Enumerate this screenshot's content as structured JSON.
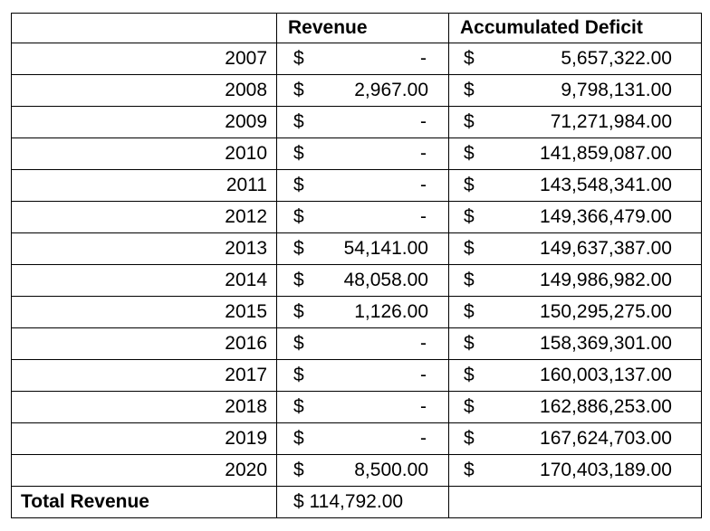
{
  "table": {
    "headers": {
      "year": "",
      "revenue": "Revenue",
      "deficit": "Accumulated Deficit"
    },
    "currency_symbol": "$",
    "rows": [
      {
        "year": "2007",
        "revenue": "-",
        "deficit": "5,657,322.00"
      },
      {
        "year": "2008",
        "revenue": "2,967.00",
        "deficit": "9,798,131.00"
      },
      {
        "year": "2009",
        "revenue": "-",
        "deficit": "71,271,984.00"
      },
      {
        "year": "2010",
        "revenue": "-",
        "deficit": "141,859,087.00"
      },
      {
        "year": "2011",
        "revenue": "-",
        "deficit": "143,548,341.00"
      },
      {
        "year": "2012",
        "revenue": "-",
        "deficit": "149,366,479.00"
      },
      {
        "year": "2013",
        "revenue": "54,141.00",
        "deficit": "149,637,387.00"
      },
      {
        "year": "2014",
        "revenue": "48,058.00",
        "deficit": "149,986,982.00"
      },
      {
        "year": "2015",
        "revenue": "1,126.00",
        "deficit": "150,295,275.00"
      },
      {
        "year": "2016",
        "revenue": "-",
        "deficit": "158,369,301.00"
      },
      {
        "year": "2017",
        "revenue": "-",
        "deficit": "160,003,137.00"
      },
      {
        "year": "2018",
        "revenue": "-",
        "deficit": "162,886,253.00"
      },
      {
        "year": "2019",
        "revenue": "-",
        "deficit": "167,624,703.00"
      },
      {
        "year": "2020",
        "revenue": "8,500.00",
        "deficit": "170,403,189.00"
      }
    ],
    "total": {
      "label": "Total Revenue",
      "revenue": "$ 114,792.00",
      "deficit": ""
    }
  }
}
